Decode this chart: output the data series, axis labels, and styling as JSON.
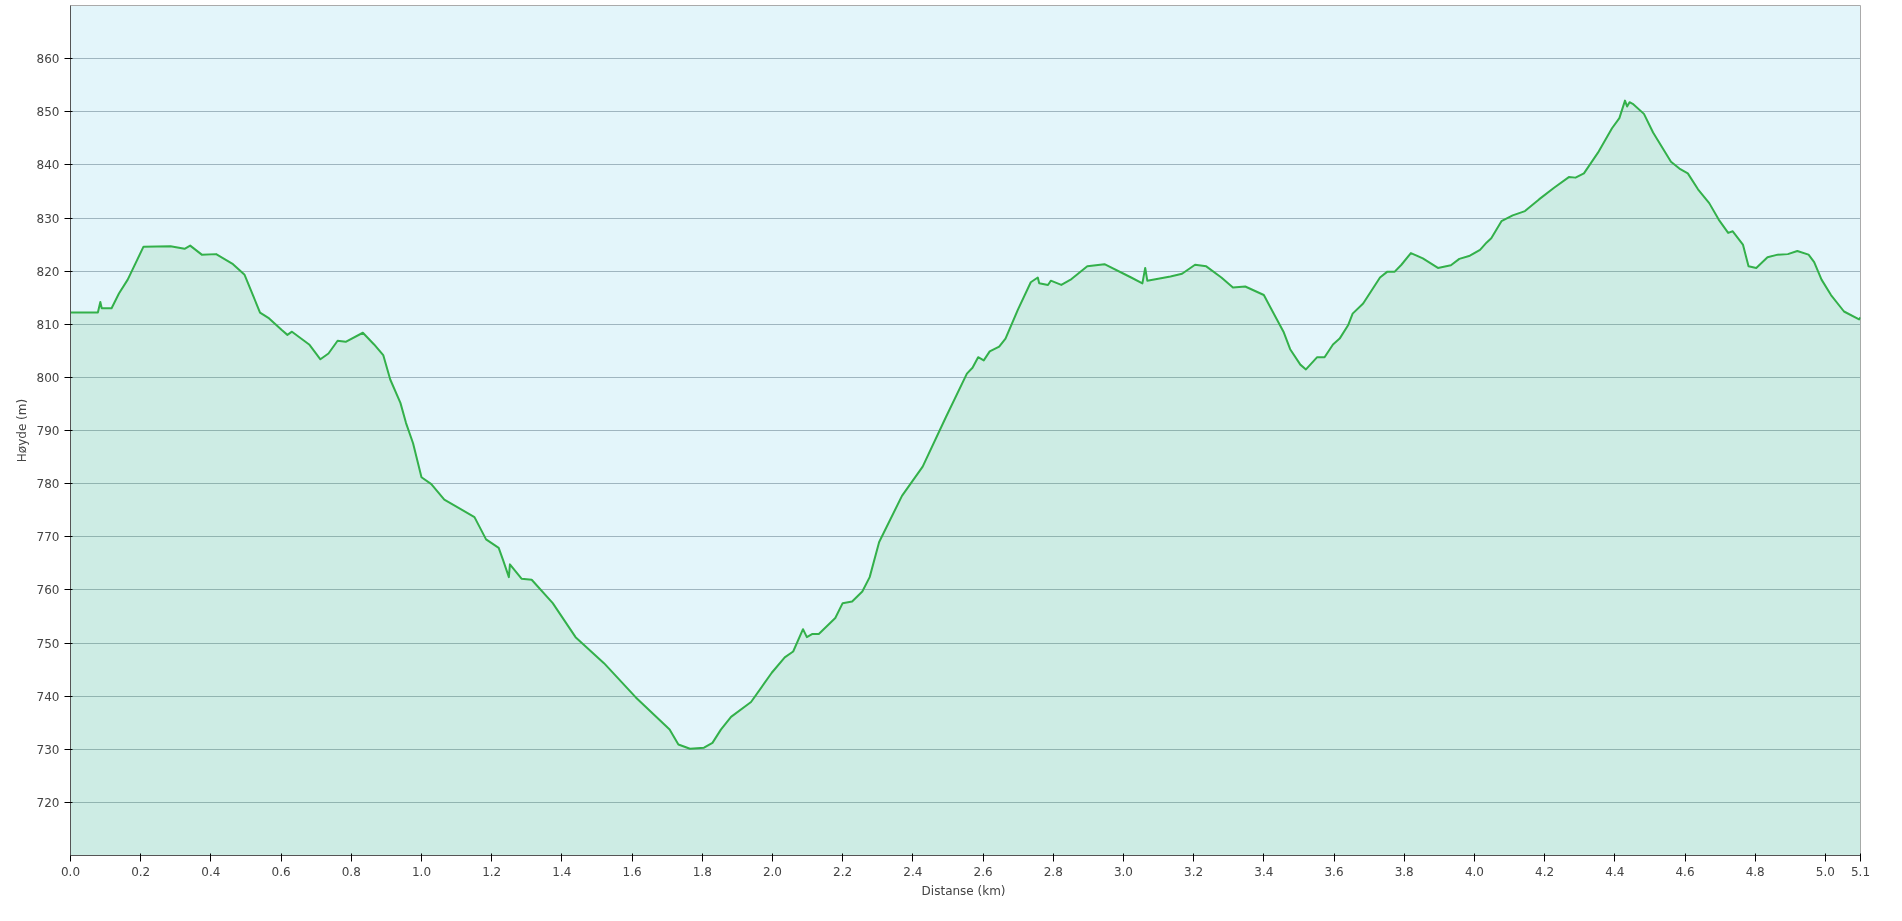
{
  "chart_data": {
    "type": "area",
    "xlabel": "Distanse  (km)",
    "ylabel": "Høyde (m)",
    "xlim": [
      0,
      5.1
    ],
    "ylim": [
      710,
      870
    ],
    "xticks": [
      {
        "value": 0,
        "label": "0.0"
      },
      0.2,
      0.4,
      0.6,
      0.8,
      {
        "value": 1,
        "label": "1.0"
      },
      1.2,
      1.4,
      1.6,
      1.8,
      {
        "value": 2,
        "label": "2.0"
      },
      2.2,
      2.4,
      2.6,
      2.8,
      {
        "value": 3,
        "label": "3.0"
      },
      3.2,
      3.4,
      3.6,
      3.8,
      {
        "value": 4,
        "label": "4.0"
      },
      4.2,
      4.4,
      4.6,
      4.8,
      {
        "value": 5,
        "label": "5.0"
      },
      5.1
    ],
    "yticks": [
      720,
      730,
      740,
      750,
      760,
      770,
      780,
      790,
      800,
      810,
      820,
      830,
      840,
      850,
      860
    ],
    "grid": "y",
    "series": [
      {
        "color": "#33b04a",
        "x": [
          0,
          0.078,
          0.085,
          0.089,
          0.117,
          0.138,
          0.163,
          0.208,
          0.285,
          0.325,
          0.341,
          0.374,
          0.415,
          0.463,
          0.496,
          0.54,
          0.566,
          0.602,
          0.618,
          0.631,
          0.68,
          0.712,
          0.735,
          0.761,
          0.784,
          0.833,
          0.865,
          0.891,
          0.911,
          0.94,
          0.956,
          0.976,
          1.0,
          1.028,
          1.065,
          1.151,
          1.184,
          1.22,
          1.233,
          1.249,
          1.252,
          1.285,
          1.314,
          1.374,
          1.439,
          1.52,
          1.61,
          1.707,
          1.732,
          1.765,
          1.805,
          1.829,
          1.853,
          1.882,
          1.939,
          1.998,
          2.035,
          2.059,
          2.087,
          2.098,
          2.114,
          2.132,
          2.179,
          2.2,
          2.227,
          2.256,
          2.277,
          2.304,
          2.369,
          2.428,
          2.494,
          2.554,
          2.57,
          2.586,
          2.602,
          2.619,
          2.646,
          2.664,
          2.699,
          2.736,
          2.756,
          2.76,
          2.785,
          2.793,
          2.823,
          2.852,
          2.897,
          2.946,
          3.022,
          3.054,
          3.062,
          3.068,
          3.134,
          3.167,
          3.204,
          3.236,
          3.279,
          3.312,
          3.347,
          3.4,
          3.456,
          3.475,
          3.504,
          3.52,
          3.552,
          3.573,
          3.597,
          3.616,
          3.64,
          3.653,
          3.683,
          3.731,
          3.752,
          3.773,
          3.792,
          3.819,
          3.853,
          3.896,
          3.933,
          3.957,
          3.987,
          4.016,
          4.035,
          4.048,
          4.077,
          4.109,
          4.144,
          4.184,
          4.227,
          4.269,
          4.288,
          4.312,
          4.352,
          4.392,
          4.413,
          4.429,
          4.435,
          4.442,
          4.451,
          4.483,
          4.509,
          4.56,
          4.584,
          4.608,
          4.637,
          4.669,
          4.696,
          4.723,
          4.736,
          4.765,
          4.781,
          4.803,
          4.835,
          4.864,
          4.893,
          4.92,
          4.952,
          4.968,
          4.989,
          5.016,
          5.053,
          5.096,
          5.1
        ],
        "values": [
          812.2,
          812.2,
          814.2,
          813,
          813,
          815.8,
          818.4,
          824.6,
          824.7,
          824.2,
          824.8,
          823.1,
          823.2,
          821.3,
          819.3,
          812.2,
          811.1,
          808.9,
          808,
          808.6,
          806.2,
          803.4,
          804.5,
          806.9,
          806.7,
          808.4,
          806.2,
          804.2,
          799.6,
          795.2,
          791.4,
          787.6,
          781.2,
          779.9,
          777,
          773.7,
          769.5,
          767.9,
          765.5,
          762.4,
          764.8,
          762.1,
          761.9,
          757.5,
          751.1,
          746.2,
          739.8,
          733.7,
          730.9,
          730.1,
          730.3,
          731.2,
          733.7,
          736.1,
          738.9,
          744.4,
          747.3,
          748.4,
          752.6,
          751.1,
          751.7,
          751.7,
          754.7,
          757.5,
          757.8,
          759.7,
          762.4,
          769,
          777.7,
          783.2,
          792.5,
          800.7,
          801.8,
          803.8,
          803.2,
          804.9,
          805.8,
          807.3,
          812.7,
          817.9,
          818.8,
          817.7,
          817.4,
          818.2,
          817.4,
          818.5,
          820.9,
          821.3,
          818.8,
          817.7,
          820.6,
          818.2,
          819,
          819.5,
          821.2,
          820.9,
          818.8,
          816.9,
          817.1,
          815.5,
          808.6,
          805.3,
          802.4,
          801.5,
          803.8,
          803.8,
          806.2,
          807.3,
          809.8,
          812,
          813.9,
          818.8,
          819.9,
          819.9,
          821.2,
          823.4,
          822.4,
          820.6,
          821.1,
          822.3,
          822.9,
          824,
          825.4,
          826.2,
          829.4,
          830.5,
          831.3,
          833.5,
          835.7,
          837.7,
          837.6,
          838.4,
          842.3,
          846.9,
          848.8,
          852.1,
          851,
          851.8,
          851.5,
          849.6,
          846.1,
          840.6,
          839.3,
          838.4,
          835.4,
          832.8,
          829.7,
          827.2,
          827.5,
          825,
          820.9,
          820.6,
          822.6,
          823.1,
          823.2,
          823.8,
          823.1,
          821.7,
          818.4,
          815.5,
          812.4,
          810.9,
          811.3
        ]
      }
    ]
  }
}
